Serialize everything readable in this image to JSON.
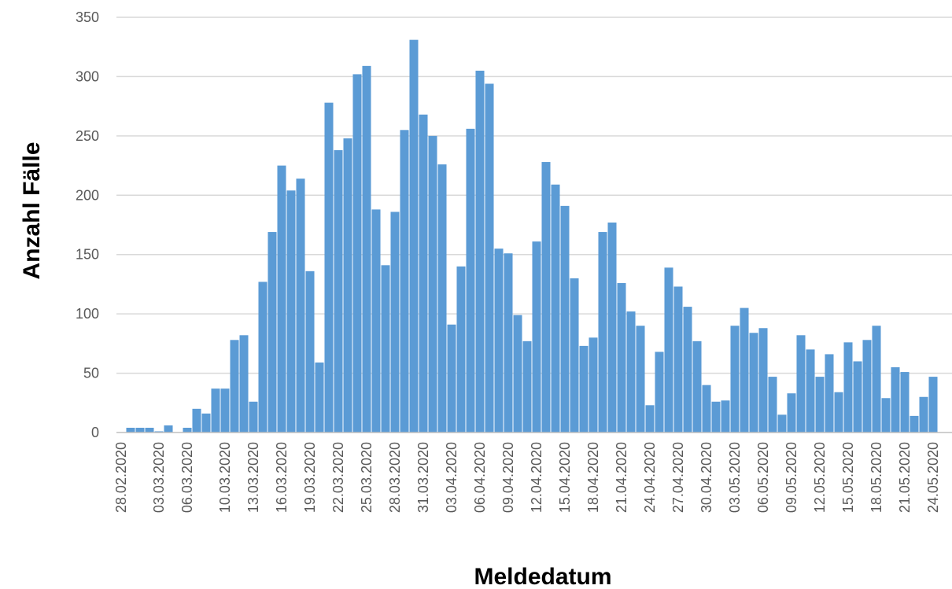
{
  "chart_data": {
    "type": "bar",
    "title": "",
    "xlabel": "Meldedatum",
    "ylabel": "Anzahl Fälle",
    "ylim": [
      0,
      350
    ],
    "yticks": [
      0,
      50,
      100,
      150,
      200,
      250,
      300,
      350
    ],
    "grid": true,
    "bar_color": "#5b9bd5",
    "categories": [
      "28.02.2020",
      "29.02.2020",
      "01.03.2020",
      "02.03.2020",
      "03.03.2020",
      "04.03.2020",
      "05.03.2020",
      "06.03.2020",
      "07.03.2020",
      "08.03.2020",
      "09.03.2020",
      "10.03.2020",
      "11.03.2020",
      "12.03.2020",
      "13.03.2020",
      "14.03.2020",
      "15.03.2020",
      "16.03.2020",
      "17.03.2020",
      "18.03.2020",
      "19.03.2020",
      "20.03.2020",
      "21.03.2020",
      "22.03.2020",
      "23.03.2020",
      "24.03.2020",
      "25.03.2020",
      "26.03.2020",
      "27.03.2020",
      "28.03.2020",
      "29.03.2020",
      "30.03.2020",
      "31.03.2020",
      "01.04.2020",
      "02.04.2020",
      "03.04.2020",
      "04.04.2020",
      "05.04.2020",
      "06.04.2020",
      "07.04.2020",
      "08.04.2020",
      "09.04.2020",
      "10.04.2020",
      "11.04.2020",
      "12.04.2020",
      "13.04.2020",
      "14.04.2020",
      "15.04.2020",
      "16.04.2020",
      "17.04.2020",
      "18.04.2020",
      "19.04.2020",
      "20.04.2020",
      "21.04.2020",
      "22.04.2020",
      "23.04.2020",
      "24.04.2020",
      "25.04.2020",
      "26.04.2020",
      "27.04.2020",
      "28.04.2020",
      "29.04.2020",
      "30.04.2020",
      "01.05.2020",
      "02.05.2020",
      "03.05.2020",
      "04.05.2020",
      "05.05.2020",
      "06.05.2020",
      "07.05.2020",
      "08.05.2020",
      "09.05.2020",
      "10.05.2020",
      "11.05.2020",
      "12.05.2020",
      "13.05.2020",
      "14.05.2020",
      "15.05.2020",
      "16.05.2020",
      "17.05.2020",
      "18.05.2020",
      "19.05.2020",
      "20.05.2020",
      "21.05.2020",
      "22.05.2020",
      "23.05.2020",
      "24.05.2020",
      "25.05.2020",
      "26.05.2020"
    ],
    "values": [
      0,
      4,
      4,
      4,
      1,
      6,
      0,
      4,
      20,
      16,
      37,
      37,
      78,
      82,
      26,
      127,
      169,
      225,
      204,
      214,
      136,
      59,
      278,
      238,
      248,
      302,
      309,
      188,
      141,
      186,
      255,
      331,
      268,
      250,
      226,
      91,
      140,
      256,
      305,
      294,
      155,
      151,
      99,
      77,
      161,
      228,
      209,
      191,
      130,
      73,
      80,
      169,
      177,
      126,
      102,
      90,
      23,
      68,
      139,
      123,
      106,
      77,
      40,
      26,
      27,
      90,
      105,
      84,
      88,
      47,
      15,
      33,
      82,
      70,
      47,
      66,
      34,
      76,
      60,
      78,
      90,
      29,
      55,
      51,
      14,
      30,
      47,
      0,
      0
    ],
    "tick_labels": [
      "28.02.2020",
      "03.03.2020",
      "06.03.2020",
      "10.03.2020",
      "13.03.2020",
      "16.03.2020",
      "19.03.2020",
      "22.03.2020",
      "25.03.2020",
      "28.03.2020",
      "31.03.2020",
      "03.04.2020",
      "06.04.2020",
      "09.04.2020",
      "12.04.2020",
      "15.04.2020",
      "18.04.2020",
      "21.04.2020",
      "24.04.2020",
      "27.04.2020",
      "30.04.2020",
      "03.05.2020",
      "06.05.2020",
      "09.05.2020",
      "12.05.2020",
      "15.05.2020",
      "18.05.2020",
      "21.05.2020",
      "24.05.2020"
    ]
  }
}
